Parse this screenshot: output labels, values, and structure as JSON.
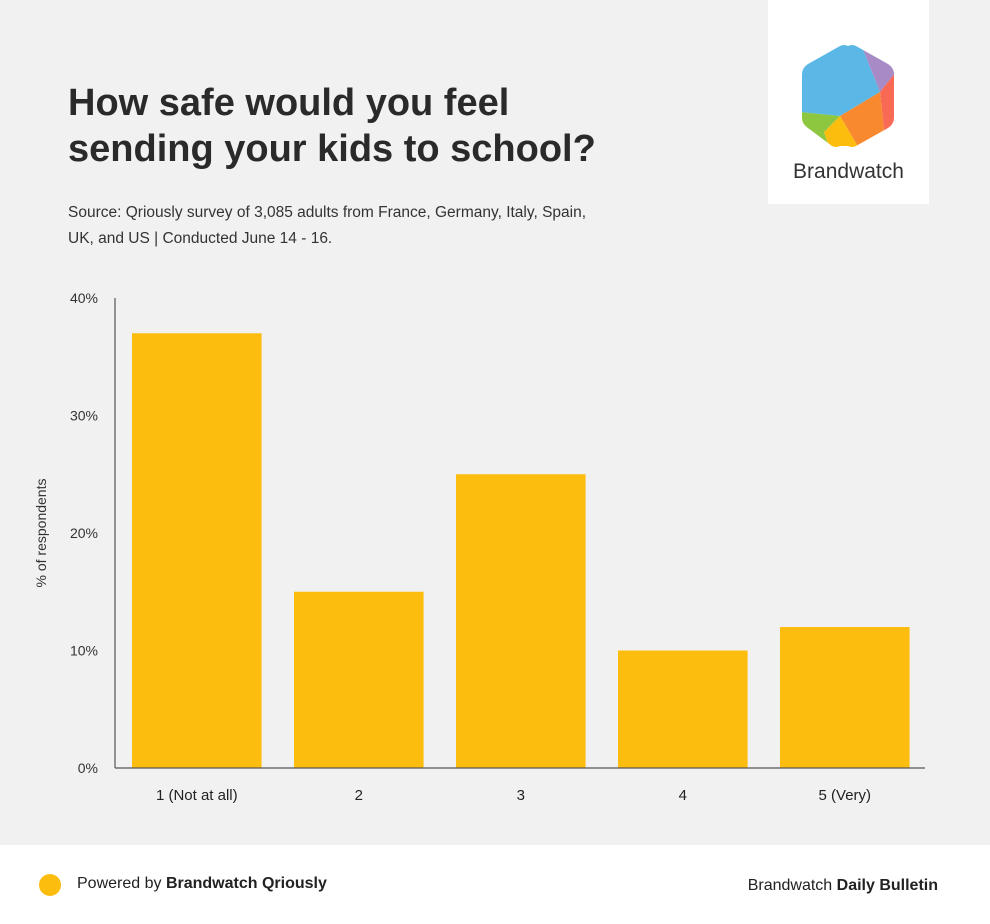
{
  "header": {
    "title_line1": "How safe would you feel",
    "title_line2": "sending your kids to school?",
    "source_line1": "Source: Qriously survey of 3,085 adults from France, Germany, Italy, Spain,",
    "source_line2": "UK, and US | Conducted June 14 - 16."
  },
  "logo": {
    "name": "Brandwatch",
    "icon": "brandwatch-hexagon-logo",
    "colors": [
      "#5bb8e6",
      "#a78ac6",
      "#f96a55",
      "#f8892f",
      "#fdbd0f",
      "#8dc63f"
    ]
  },
  "chart_data": {
    "type": "bar",
    "categories": [
      "1 (Not at all)",
      "2",
      "3",
      "4",
      "5 (Very)"
    ],
    "values": [
      37,
      15,
      25,
      10,
      12
    ],
    "ylabel": "% of respondents",
    "xlabel": "",
    "ylim": [
      0,
      40
    ],
    "yticks": [
      "0%",
      "10%",
      "20%",
      "30%",
      "40%"
    ],
    "ytick_values": [
      0,
      10,
      20,
      30,
      40
    ],
    "bar_color": "#fdbd0f",
    "grid": false,
    "legend": "none"
  },
  "footer": {
    "powered_prefix": "Powered by ",
    "powered_brand": "Brandwatch Qriously",
    "right_prefix": "Brandwatch ",
    "right_brand": "Daily Bulletin",
    "dot_color": "#fdbd0f"
  }
}
